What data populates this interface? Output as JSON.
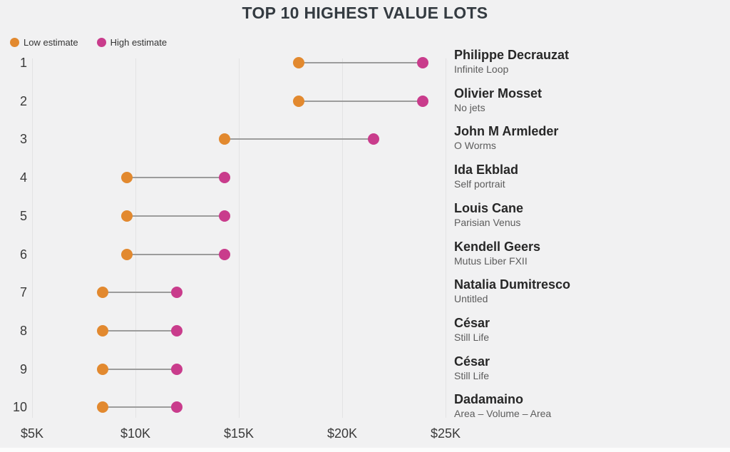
{
  "title": "TOP 10 HIGHEST VALUE LOTS",
  "legend": {
    "low": {
      "label": "Low estimate",
      "color": "#e2892f"
    },
    "high": {
      "label": "High estimate",
      "color": "#c93c8c"
    }
  },
  "colors": {
    "background": "#f1f1f2",
    "low_dot": "#e2892f",
    "high_dot": "#c93c8c",
    "connector": "#9c9c9c",
    "gridline": "#e3e3e4",
    "title_text": "#343b41",
    "artist_text": "#272727",
    "work_text": "#5c5c5c"
  },
  "chart_data": {
    "type": "dumbbell",
    "title": "TOP 10 HIGHEST VALUE LOTS",
    "series_names": [
      "Low estimate",
      "High estimate"
    ],
    "x_axis": {
      "ticks": [
        "$5K",
        "$10K",
        "$15K",
        "$20K",
        "$25K"
      ],
      "values_k": [
        5,
        10,
        15,
        20,
        25
      ],
      "range_k": [
        5,
        25
      ],
      "unit": "USD thousands"
    },
    "grid": "vertical-only",
    "legend_position": "top-left",
    "rows": [
      {
        "rank": 1,
        "artist": "Philippe Decrauzat",
        "work": "Infinite Loop",
        "low_k": 17.9,
        "high_k": 23.9
      },
      {
        "rank": 2,
        "artist": "Olivier Mosset",
        "work": "No jets",
        "low_k": 17.9,
        "high_k": 23.9
      },
      {
        "rank": 3,
        "artist": "John M Armleder",
        "work": "O Worms",
        "low_k": 14.3,
        "high_k": 21.5
      },
      {
        "rank": 4,
        "artist": "Ida Ekblad",
        "work": "Self portrait",
        "low_k": 9.6,
        "high_k": 14.3
      },
      {
        "rank": 5,
        "artist": "Louis Cane",
        "work": "Parisian Venus",
        "low_k": 9.6,
        "high_k": 14.3
      },
      {
        "rank": 6,
        "artist": "Kendell Geers",
        "work": "Mutus Liber FXII",
        "low_k": 9.6,
        "high_k": 14.3
      },
      {
        "rank": 7,
        "artist": "Natalia Dumitresco",
        "work": "Untitled",
        "low_k": 8.4,
        "high_k": 12.0
      },
      {
        "rank": 8,
        "artist": "César",
        "work": "Still Life",
        "low_k": 8.4,
        "high_k": 12.0
      },
      {
        "rank": 9,
        "artist": "César",
        "work": "Still Life",
        "low_k": 8.4,
        "high_k": 12.0
      },
      {
        "rank": 10,
        "artist": "Dadamaino",
        "work": "Area – Volume – Area",
        "low_k": 8.4,
        "high_k": 12.0
      }
    ]
  }
}
